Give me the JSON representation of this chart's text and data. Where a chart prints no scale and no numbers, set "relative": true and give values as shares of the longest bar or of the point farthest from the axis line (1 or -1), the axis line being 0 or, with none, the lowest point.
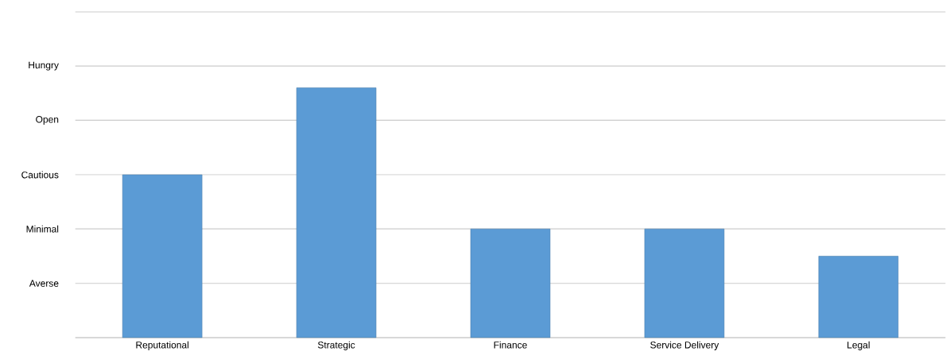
{
  "chart_data": {
    "type": "bar",
    "relative": true,
    "categories": [
      "Reputational",
      "Strategic",
      "Finance",
      "Service Delivery",
      "Legal"
    ],
    "values": [
      0.652,
      1,
      0.435,
      0.435,
      0.326
    ],
    "color": "#5b9bd5",
    "ref_lines": [
      {
        "axis": "y",
        "value": 0.217,
        "label": "Averse"
      },
      {
        "axis": "y",
        "value": 0.435,
        "label": "Minimal"
      },
      {
        "axis": "y",
        "value": 0.652,
        "label": "Cautious"
      },
      {
        "axis": "y",
        "value": 0.87,
        "label": "Open"
      },
      {
        "axis": "y",
        "value": 1.087,
        "label": "Hungry"
      },
      {
        "axis": "y",
        "value": 1.304
      }
    ]
  }
}
